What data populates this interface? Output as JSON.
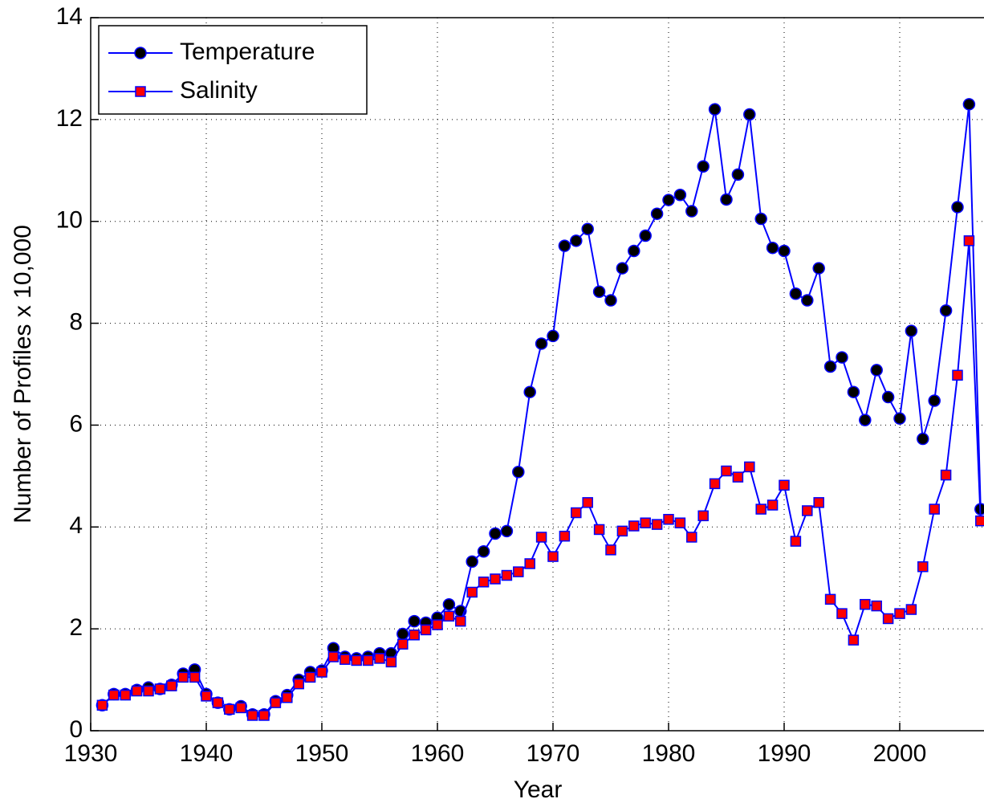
{
  "chart_data": {
    "type": "line",
    "xlabel": "Year",
    "ylabel": "Number of Profiles x 10,000",
    "x": [
      1931,
      1932,
      1933,
      1934,
      1935,
      1936,
      1937,
      1938,
      1939,
      1940,
      1941,
      1942,
      1943,
      1944,
      1945,
      1946,
      1947,
      1948,
      1949,
      1950,
      1951,
      1952,
      1953,
      1954,
      1955,
      1956,
      1957,
      1958,
      1959,
      1960,
      1961,
      1962,
      1963,
      1964,
      1965,
      1966,
      1967,
      1968,
      1969,
      1970,
      1971,
      1972,
      1973,
      1974,
      1975,
      1976,
      1977,
      1978,
      1979,
      1980,
      1981,
      1982,
      1983,
      1984,
      1985,
      1986,
      1987,
      1988,
      1989,
      1990,
      1991,
      1992,
      1993,
      1994,
      1995,
      1996,
      1997,
      1998,
      1999,
      2000,
      2001,
      2002,
      2003,
      2004,
      2005,
      2006,
      2007
    ],
    "series": [
      {
        "name": "Temperature",
        "color": "#0000ff",
        "marker": "circle",
        "marker_color": "#000000",
        "values": [
          0.5,
          0.72,
          0.72,
          0.8,
          0.85,
          0.82,
          0.9,
          1.12,
          1.2,
          0.72,
          0.55,
          0.42,
          0.48,
          0.32,
          0.32,
          0.58,
          0.7,
          1.0,
          1.15,
          1.18,
          1.62,
          1.45,
          1.42,
          1.45,
          1.52,
          1.52,
          1.9,
          2.15,
          2.12,
          2.22,
          2.48,
          2.35,
          3.32,
          3.52,
          3.87,
          3.92,
          5.08,
          6.65,
          7.6,
          7.75,
          9.52,
          9.62,
          9.85,
          8.62,
          8.45,
          9.08,
          9.42,
          9.72,
          10.15,
          10.42,
          10.52,
          10.2,
          11.08,
          12.2,
          10.43,
          10.92,
          12.1,
          10.05,
          9.48,
          9.42,
          8.58,
          8.45,
          9.08,
          7.15,
          7.33,
          6.65,
          6.1,
          7.08,
          6.55,
          6.13,
          7.85,
          5.73,
          6.48,
          8.25,
          10.28,
          12.3,
          4.35
        ]
      },
      {
        "name": "Salinity",
        "color": "#0000ff",
        "marker": "square",
        "marker_color": "#ff0000",
        "values": [
          0.5,
          0.7,
          0.7,
          0.78,
          0.78,
          0.82,
          0.88,
          1.05,
          1.05,
          0.68,
          0.55,
          0.42,
          0.45,
          0.3,
          0.3,
          0.55,
          0.65,
          0.92,
          1.05,
          1.15,
          1.45,
          1.4,
          1.38,
          1.38,
          1.42,
          1.35,
          1.7,
          1.88,
          1.98,
          2.08,
          2.25,
          2.15,
          2.72,
          2.92,
          2.98,
          3.05,
          3.12,
          3.28,
          3.8,
          3.42,
          3.82,
          4.28,
          4.48,
          3.95,
          3.55,
          3.92,
          4.02,
          4.08,
          4.05,
          4.15,
          4.08,
          3.8,
          4.22,
          4.85,
          5.1,
          4.98,
          5.18,
          4.35,
          4.43,
          4.82,
          3.72,
          4.32,
          4.48,
          2.58,
          2.3,
          1.78,
          2.48,
          2.45,
          2.2,
          2.3,
          2.38,
          3.22,
          4.35,
          5.02,
          6.98,
          9.62,
          4.12
        ]
      }
    ],
    "xlim": [
      1930,
      2010
    ],
    "xticks": [
      1930,
      1940,
      1950,
      1960,
      1970,
      1980,
      1990,
      2000
    ],
    "ylim": [
      0,
      14
    ],
    "yticks": [
      0,
      2,
      4,
      6,
      8,
      10,
      12,
      14
    ],
    "grid": true,
    "legend": "upper left"
  }
}
